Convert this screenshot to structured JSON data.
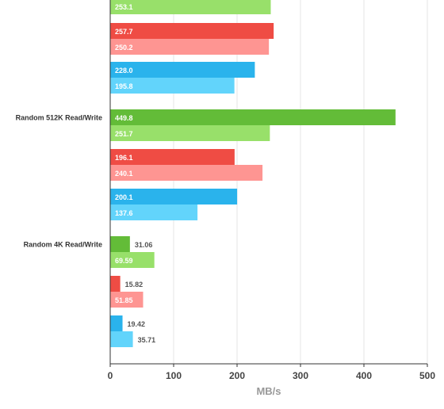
{
  "chart_data": {
    "type": "bar",
    "orientation": "horizontal",
    "xlabel": "MB/s",
    "xlim": [
      0,
      500
    ],
    "xticks": [
      0,
      100,
      200,
      300,
      400,
      500
    ],
    "grid": true,
    "legend": "none",
    "groups": [
      {
        "label": "",
        "bars": [
          {
            "value": 253.1,
            "label": "253.1",
            "color": "#98e06a"
          },
          {
            "value": 257.7,
            "label": "257.7",
            "color": "#ef4c44"
          },
          {
            "value": 250.2,
            "label": "250.2",
            "color": "#fe9592"
          },
          {
            "value": 228.0,
            "label": "228.0",
            "color": "#2ab3ec"
          },
          {
            "value": 195.8,
            "label": "195.8",
            "color": "#62d4fb"
          }
        ]
      },
      {
        "label": "Random 512K Read/Write",
        "bars": [
          {
            "value": 449.8,
            "label": "449.8",
            "color": "#63bc38"
          },
          {
            "value": 251.7,
            "label": "251.7",
            "color": "#98e06a"
          },
          {
            "value": 196.1,
            "label": "196.1",
            "color": "#ef4c44"
          },
          {
            "value": 240.1,
            "label": "240.1",
            "color": "#fe9592"
          },
          {
            "value": 200.1,
            "label": "200.1",
            "color": "#2ab3ec"
          },
          {
            "value": 137.6,
            "label": "137.6",
            "color": "#62d4fb"
          }
        ]
      },
      {
        "label": "Random 4K Read/Write",
        "bars": [
          {
            "value": 31.06,
            "label": "31.06",
            "color": "#63bc38"
          },
          {
            "value": 69.59,
            "label": "69.59",
            "color": "#98e06a"
          },
          {
            "value": 15.82,
            "label": "15.82",
            "color": "#ef4c44"
          },
          {
            "value": 51.85,
            "label": "51.85",
            "color": "#fe9592"
          },
          {
            "value": 19.42,
            "label": "19.42",
            "color": "#2ab3ec"
          },
          {
            "value": 35.71,
            "label": "35.71",
            "color": "#62d4fb"
          }
        ]
      }
    ]
  }
}
